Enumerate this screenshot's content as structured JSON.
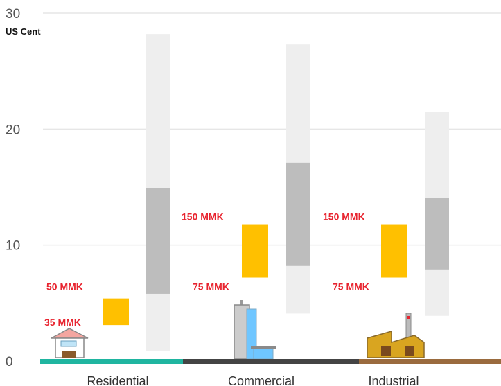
{
  "chart_data": {
    "type": "bar",
    "unit_label": "US Cent",
    "ylim": [
      0,
      30
    ],
    "yticks": [
      0,
      10,
      20,
      30
    ],
    "categories": [
      "Residential",
      "Commercial",
      "Industrial"
    ],
    "category_colors": [
      "#1fb5a0",
      "#444444",
      "#9a6b3e"
    ],
    "myanmar_tariff": [
      {
        "category": "Residential",
        "low_label": "35 MMK",
        "high_label": "50 MMK",
        "low": 3.1,
        "high": 5.4
      },
      {
        "category": "Commercial",
        "low_label": "75 MMK",
        "high_label": "150 MMK",
        "low": 7.2,
        "high": 11.8
      },
      {
        "category": "Industrial",
        "low_label": "75 MMK",
        "high_label": "150 MMK",
        "low": 7.2,
        "high": 11.8
      }
    ],
    "comparison_range": [
      {
        "category": "Residential",
        "min": 0.9,
        "max": 28.2,
        "q1": 5.8,
        "q3": 14.9
      },
      {
        "category": "Commercial",
        "min": 4.1,
        "max": 27.3,
        "q1": 8.2,
        "q3": 17.1
      },
      {
        "category": "Industrial",
        "min": 3.9,
        "max": 21.5,
        "q1": 7.9,
        "q3": 14.1
      }
    ],
    "colors": {
      "tariff_bar": "#ffc000",
      "range_outer": "#eeeeee",
      "range_inner": "#bdbdbd",
      "gridline": "#e6e6e6",
      "tariff_text": "#e8242f"
    },
    "grid": true
  }
}
